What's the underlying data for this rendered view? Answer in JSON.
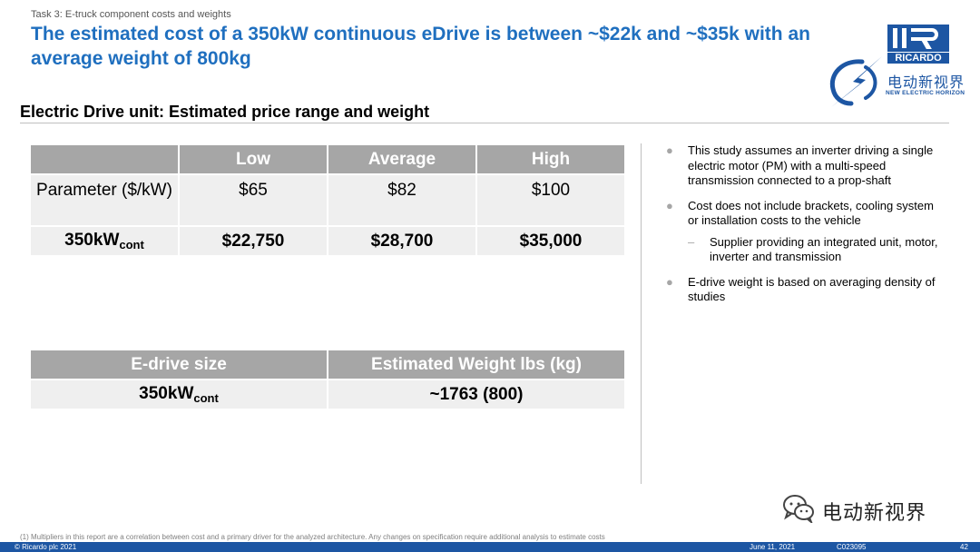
{
  "header": {
    "task": "Task 3: E-truck component costs and weights",
    "headline": "The estimated cost of a 350kW continuous eDrive is between ~$22k and ~$35k with an average weight of 800kg"
  },
  "logos": {
    "ricardo": "RICARDO",
    "brand_cn": "电动新视界",
    "brand_en": "NEW ELECTRIC HORIZON"
  },
  "section_title": "Electric Drive unit: Estimated price range and weight",
  "price_table": {
    "headers": [
      "",
      "Low",
      "Average",
      "High"
    ],
    "row_param": {
      "label": "Parameter ($/kW)",
      "values": [
        "$65",
        "$82",
        "$100"
      ]
    },
    "row_350": {
      "label_main": "350kW",
      "label_sub": "cont",
      "values": [
        "$22,750",
        "$28,700",
        "$35,000"
      ]
    }
  },
  "weight_table": {
    "headers": [
      "E-drive size",
      "Estimated Weight lbs (kg)"
    ],
    "row": {
      "label_main": "350kW",
      "label_sub": "cont",
      "value": "~1763 (800)"
    }
  },
  "bullets": {
    "b1": "This study assumes an inverter driving a single electric motor (PM) with a multi-speed transmission connected to a prop-shaft",
    "b2": "Cost does not include brackets, cooling system or installation costs to the vehicle",
    "b2_sub": "Supplier providing an integrated unit, motor, inverter and transmission",
    "b3": "E-drive weight is based on averaging density of studies"
  },
  "watermark": {
    "name": "电动新视界"
  },
  "footnote": "(1)  Multipliers in this report are a correlation between cost and a primary driver for the analyzed architecture. Any changes on specification require additional analysis to estimate costs",
  "footer": {
    "copyright": "© Ricardo plc 2021",
    "date": "June 11,  2021",
    "code": "C023095",
    "page": "42"
  },
  "colors": {
    "brand_blue": "#1d56a3",
    "headline_blue": "#1f6fbf",
    "header_gray": "#a6a6a6",
    "cell_gray": "#efefef"
  }
}
